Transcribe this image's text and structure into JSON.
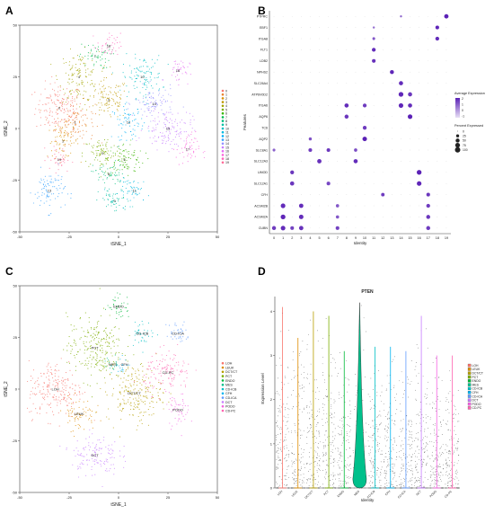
{
  "panels": {
    "A": "A",
    "B": "B",
    "C": "C",
    "D": "D"
  },
  "chart_data": [
    {
      "type": "scatter",
      "panel": "A",
      "xlabel": "tSNE_1",
      "ylabel": "tSNE_2",
      "xlim": [
        -50,
        50
      ],
      "ylim": [
        -50,
        50
      ],
      "xticks": [
        "-50",
        "-25",
        "0",
        "25",
        "50"
      ],
      "yticks": [
        "50",
        "25",
        "0",
        "-25",
        "-50"
      ],
      "legend_position": "right",
      "legend": [
        "0",
        "1",
        "2",
        "3",
        "4",
        "5",
        "6",
        "7",
        "8",
        "9",
        "10",
        "11",
        "12",
        "13",
        "14",
        "15",
        "16",
        "17",
        "18",
        "19"
      ],
      "colors": [
        "#F8766D",
        "#EA8331",
        "#D89000",
        "#C09B00",
        "#A3A500",
        "#7CAE00",
        "#39B600",
        "#00BB4E",
        "#00BF7D",
        "#00C1A3",
        "#00BFC4",
        "#00BAE0",
        "#00B0F6",
        "#35A2FF",
        "#9590FF",
        "#C77CFF",
        "#E76BF3",
        "#FA62DB",
        "#FF62BC",
        "#FF6A98"
      ],
      "clusters": [
        {
          "id": "0",
          "cx": -30,
          "cy": 10,
          "sx": 6,
          "sy": 6
        },
        {
          "id": "1",
          "cx": -22,
          "cy": 3,
          "sx": 5,
          "sy": 5
        },
        {
          "id": "2",
          "cx": -28,
          "cy": -6,
          "sx": 4,
          "sy": 4
        },
        {
          "id": "3",
          "cx": -5,
          "cy": 14,
          "sx": 5,
          "sy": 5
        },
        {
          "id": "4",
          "cx": -20,
          "cy": 25,
          "sx": 5,
          "sy": 6
        },
        {
          "id": "5",
          "cx": -8,
          "cy": -12,
          "sx": 5,
          "sy": 4
        },
        {
          "id": "6",
          "cx": 3,
          "cy": -15,
          "sx": 5,
          "sy": 4
        },
        {
          "id": "7",
          "cx": -12,
          "cy": 35,
          "sx": 4,
          "sy": 3
        },
        {
          "id": "8",
          "cx": -5,
          "cy": -22,
          "sx": 4,
          "sy": 3
        },
        {
          "id": "9",
          "cx": -2,
          "cy": -35,
          "sx": 4,
          "sy": 3
        },
        {
          "id": "10",
          "cx": 12,
          "cy": 25,
          "sx": 5,
          "sy": 5
        },
        {
          "id": "11",
          "cx": 8,
          "cy": -30,
          "sx": 4,
          "sy": 3
        },
        {
          "id": "12",
          "cx": 5,
          "cy": 3,
          "sx": 4,
          "sy": 4
        },
        {
          "id": "13",
          "cx": -35,
          "cy": -30,
          "sx": 4,
          "sy": 5
        },
        {
          "id": "14",
          "cx": 18,
          "cy": 12,
          "sx": 5,
          "sy": 4
        },
        {
          "id": "15",
          "cx": 25,
          "cy": 0,
          "sx": 6,
          "sy": 5
        },
        {
          "id": "16",
          "cx": 30,
          "cy": 28,
          "sx": 3,
          "sy": 3
        },
        {
          "id": "17",
          "cx": 35,
          "cy": -10,
          "sx": 3,
          "sy": 4
        },
        {
          "id": "18",
          "cx": -5,
          "cy": 40,
          "sx": 3,
          "sy": 3
        },
        {
          "id": "19",
          "cx": -30,
          "cy": -15,
          "sx": 3,
          "sy": 3
        }
      ]
    },
    {
      "type": "scatter",
      "subtype": "dotplot",
      "panel": "B",
      "xlabel": "Identity",
      "ylabel": "Features",
      "x": [
        "0",
        "1",
        "2",
        "3",
        "4",
        "5",
        "6",
        "7",
        "8",
        "9",
        "10",
        "11",
        "12",
        "13",
        "14",
        "15",
        "16",
        "17",
        "18",
        "19"
      ],
      "features": [
        "PTPRC",
        "EBF1",
        "ITGA8",
        "FLT1",
        "LDB2",
        "NPHS2",
        "SLC26A4",
        "ATP6V0D2",
        "ITGA6",
        "AQP6",
        "TC6",
        "AQP2",
        "SLC8A1",
        "SLC12A3",
        "UMOD",
        "SLC12A1",
        "CFH",
        "ACSM2B",
        "ACSM2A",
        "CUBN"
      ],
      "dots": [
        {
          "f": "PTPRC",
          "c": "14",
          "pct": 10,
          "expr": 1.2
        },
        {
          "f": "PTPRC",
          "c": "19",
          "pct": 60,
          "expr": 2.5
        },
        {
          "f": "EBF1",
          "c": "11",
          "pct": 10,
          "expr": 1.0
        },
        {
          "f": "EBF1",
          "c": "18",
          "pct": 40,
          "expr": 2.4
        },
        {
          "f": "ITGA8",
          "c": "11",
          "pct": 20,
          "expr": 1.5
        },
        {
          "f": "ITGA8",
          "c": "18",
          "pct": 45,
          "expr": 2.3
        },
        {
          "f": "FLT1",
          "c": "11",
          "pct": 45,
          "expr": 2.3
        },
        {
          "f": "LDB2",
          "c": "11",
          "pct": 40,
          "expr": 2.2
        },
        {
          "f": "NPHS2",
          "c": "13",
          "pct": 50,
          "expr": 2.4
        },
        {
          "f": "SLC26A4",
          "c": "14",
          "pct": 55,
          "expr": 2.3
        },
        {
          "f": "ATP6V0D2",
          "c": "14",
          "pct": 75,
          "expr": 2.4
        },
        {
          "f": "ATP6V0D2",
          "c": "15",
          "pct": 55,
          "expr": 2.1
        },
        {
          "f": "ITGA6",
          "c": "8",
          "pct": 55,
          "expr": 2.3
        },
        {
          "f": "ITGA6",
          "c": "10",
          "pct": 45,
          "expr": 2.0
        },
        {
          "f": "ITGA6",
          "c": "14",
          "pct": 70,
          "expr": 2.4
        },
        {
          "f": "ITGA6",
          "c": "15",
          "pct": 55,
          "expr": 2.3
        },
        {
          "f": "AQP6",
          "c": "8",
          "pct": 50,
          "expr": 2.1
        },
        {
          "f": "AQP6",
          "c": "15",
          "pct": 70,
          "expr": 2.5
        },
        {
          "f": "TC6",
          "c": "10",
          "pct": 45,
          "expr": 2.0
        },
        {
          "f": "AQP2",
          "c": "4",
          "pct": 25,
          "expr": 1.6
        },
        {
          "f": "AQP2",
          "c": "10",
          "pct": 65,
          "expr": 2.5
        },
        {
          "f": "SLC8A1",
          "c": "0",
          "pct": 20,
          "expr": 1.3
        },
        {
          "f": "SLC8A1",
          "c": "4",
          "pct": 40,
          "expr": 2.0
        },
        {
          "f": "SLC8A1",
          "c": "6",
          "pct": 40,
          "expr": 2.1
        },
        {
          "f": "SLC8A1",
          "c": "9",
          "pct": 30,
          "expr": 1.7
        },
        {
          "f": "SLC12A3",
          "c": "5",
          "pct": 60,
          "expr": 2.2
        },
        {
          "f": "SLC12A3",
          "c": "9",
          "pct": 55,
          "expr": 2.3
        },
        {
          "f": "UMOD",
          "c": "2",
          "pct": 45,
          "expr": 2.1
        },
        {
          "f": "UMOD",
          "c": "16",
          "pct": 75,
          "expr": 2.5
        },
        {
          "f": "SLC12A1",
          "c": "2",
          "pct": 55,
          "expr": 2.1
        },
        {
          "f": "SLC12A1",
          "c": "6",
          "pct": 40,
          "expr": 1.8
        },
        {
          "f": "SLC12A1",
          "c": "16",
          "pct": 70,
          "expr": 2.4
        },
        {
          "f": "CFH",
          "c": "12",
          "pct": 35,
          "expr": 2.0
        },
        {
          "f": "CFH",
          "c": "17",
          "pct": 40,
          "expr": 2.1
        },
        {
          "f": "ACSM2B",
          "c": "1",
          "pct": 70,
          "expr": 2.3
        },
        {
          "f": "ACSM2B",
          "c": "3",
          "pct": 60,
          "expr": 2.3
        },
        {
          "f": "ACSM2B",
          "c": "7",
          "pct": 30,
          "expr": 1.5
        },
        {
          "f": "ACSM2B",
          "c": "17",
          "pct": 45,
          "expr": 2.0
        },
        {
          "f": "ACSM2A",
          "c": "1",
          "pct": 75,
          "expr": 2.4
        },
        {
          "f": "ACSM2A",
          "c": "3",
          "pct": 65,
          "expr": 2.3
        },
        {
          "f": "ACSM2A",
          "c": "7",
          "pct": 30,
          "expr": 1.5
        },
        {
          "f": "ACSM2A",
          "c": "17",
          "pct": 50,
          "expr": 2.1
        },
        {
          "f": "CUBN",
          "c": "0",
          "pct": 50,
          "expr": 2.0
        },
        {
          "f": "CUBN",
          "c": "1",
          "pct": 70,
          "expr": 2.3
        },
        {
          "f": "CUBN",
          "c": "2",
          "pct": 40,
          "expr": 1.9
        },
        {
          "f": "CUBN",
          "c": "3",
          "pct": 60,
          "expr": 2.2
        },
        {
          "f": "CUBN",
          "c": "7",
          "pct": 40,
          "expr": 1.9
        },
        {
          "f": "CUBN",
          "c": "17",
          "pct": 50,
          "expr": 2.0
        }
      ],
      "legend_expr_title": "Average Expression",
      "legend_expr_ticks": [
        "2",
        "1",
        "0",
        "-1"
      ],
      "legend_pct_title": "Percent Expressed",
      "legend_pct_values": [
        0,
        25,
        50,
        75,
        100
      ],
      "legend_pct_labels": [
        "0",
        "25",
        "50",
        "75",
        "100"
      ],
      "color_low": "#E8E0F5",
      "color_high": "#5B21B6"
    },
    {
      "type": "scatter",
      "panel": "C",
      "xlabel": "tSNE_1",
      "ylabel": "tSNE_2",
      "xlim": [
        -50,
        50
      ],
      "ylim": [
        -50,
        50
      ],
      "xticks": [
        "-50",
        "-25",
        "0",
        "25",
        "50"
      ],
      "yticks": [
        "50",
        "25",
        "0",
        "-25",
        "-50"
      ],
      "legend_position": "right",
      "legend": [
        "LOH",
        "LEUK",
        "DCT/CT",
        "PCT",
        "ENDO",
        "MES",
        "CD-ICB",
        "CFH",
        "CD-ICA",
        "DCT",
        "PODO",
        "CD-PC"
      ],
      "colors": [
        "#F8766D",
        "#DE8C00",
        "#B79F00",
        "#7CAE00",
        "#00BA38",
        "#00C08B",
        "#00BFC4",
        "#00B4F0",
        "#619CFF",
        "#C77CFF",
        "#F564E3",
        "#FF64B0"
      ],
      "clusters": [
        {
          "id": "LOH",
          "cx": -32,
          "cy": 0,
          "sx": 7,
          "sy": 7
        },
        {
          "id": "LEUK",
          "cx": -20,
          "cy": -12,
          "sx": 4,
          "sy": 4
        },
        {
          "id": "DCT/CT",
          "cx": 8,
          "cy": -2,
          "sx": 7,
          "sy": 7
        },
        {
          "id": "PCT",
          "cx": -12,
          "cy": 20,
          "sx": 7,
          "sy": 8
        },
        {
          "id": "ENDO",
          "cx": 0,
          "cy": 40,
          "sx": 3,
          "sy": 3
        },
        {
          "id": "MES",
          "cx": -3,
          "cy": 12,
          "sx": 2,
          "sy": 2
        },
        {
          "id": "CD-ICB",
          "cx": 12,
          "cy": 27,
          "sx": 3,
          "sy": 3
        },
        {
          "id": "CFH",
          "cx": 3,
          "cy": 12,
          "sx": 2,
          "sy": 2
        },
        {
          "id": "CD-ICA",
          "cx": 30,
          "cy": 27,
          "sx": 3,
          "sy": 3
        },
        {
          "id": "DCT",
          "cx": -12,
          "cy": -32,
          "sx": 6,
          "sy": 5
        },
        {
          "id": "PODO",
          "cx": 30,
          "cy": -10,
          "sx": 3,
          "sy": 4
        },
        {
          "id": "CD-PC",
          "cx": 25,
          "cy": 8,
          "sx": 6,
          "sy": 5
        }
      ],
      "labels": [
        "LOH",
        "DCT",
        "PODO",
        "LEUK",
        "PCT",
        "CD-ICA",
        "DCT/CT"
      ]
    },
    {
      "type": "violin",
      "panel": "D",
      "title": "PTEN",
      "xlabel": "Identity",
      "ylabel": "Expression Level",
      "ylim": [
        0,
        4.5
      ],
      "yticks": [
        "0",
        "1",
        "2",
        "3",
        "4"
      ],
      "categories": [
        "LOH",
        "LEUK",
        "DCT/CT",
        "PCT",
        "ENDO",
        "MES",
        "CD-ICB",
        "CFH",
        "CD-ICA",
        "DCT",
        "PODO",
        "CD-PC"
      ],
      "colors": [
        "#F8766D",
        "#DE8C00",
        "#B79F00",
        "#7CAE00",
        "#00BA38",
        "#00C08B",
        "#00BFC4",
        "#00B4F0",
        "#619CFF",
        "#C77CFF",
        "#F564E3",
        "#FF64B0"
      ],
      "max_values": [
        4.1,
        3.4,
        4.0,
        3.9,
        3.1,
        4.2,
        3.2,
        3.2,
        3.1,
        3.9,
        3.0,
        3.0
      ],
      "legend": [
        "LOH",
        "LEUK",
        "DCT/CT",
        "PCT",
        "ENDO",
        "MES",
        "CD-ICB",
        "CFH",
        "CD-ICA",
        "DCT",
        "PODO",
        "CD-PC"
      ]
    }
  ]
}
